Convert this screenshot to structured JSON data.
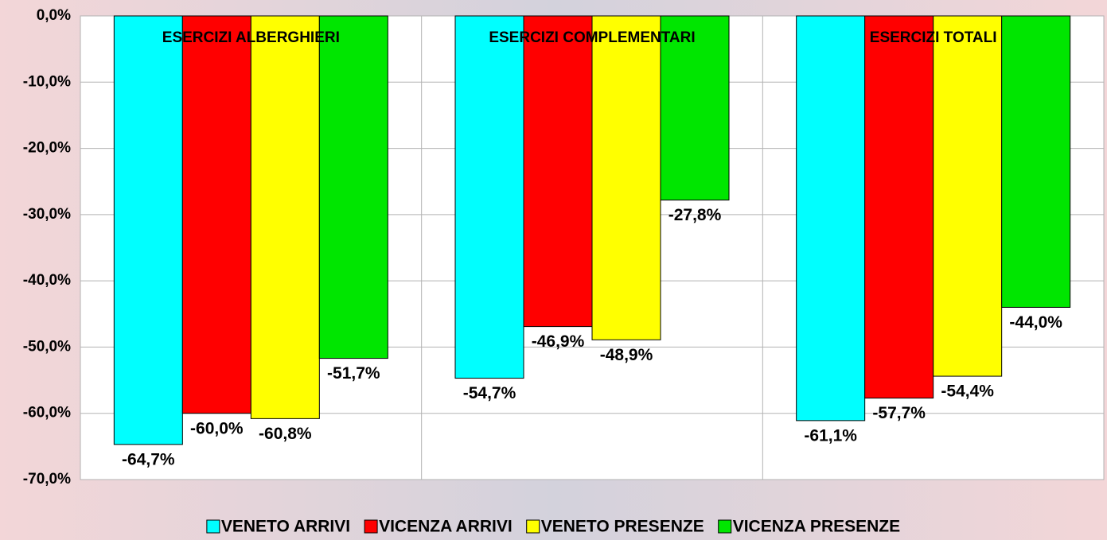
{
  "chart_data": {
    "type": "bar",
    "categories": [
      "ESERCIZI ALBERGHIERI",
      "ESERCIZI COMPLEMENTARI",
      "ESERCIZI TOTALI"
    ],
    "series": [
      {
        "name": "VENETO ARRIVI",
        "color": "#00ffff",
        "values": [
          -64.7,
          -54.7,
          -61.1
        ],
        "value_labels": [
          "-64,7%",
          "-54,7%",
          "-61,1%"
        ]
      },
      {
        "name": "VICENZA ARRIVI",
        "color": "#ff0000",
        "values": [
          -60.0,
          -46.9,
          -57.7
        ],
        "value_labels": [
          "-60,0%",
          "-46,9%",
          "-57,7%"
        ]
      },
      {
        "name": "VENETO PRESENZE",
        "color": "#ffff00",
        "values": [
          -60.8,
          -48.9,
          -54.4
        ],
        "value_labels": [
          "-60,8%",
          "-48,9%",
          "-54,4%"
        ]
      },
      {
        "name": "VICENZA PRESENZE",
        "color": "#00e600",
        "values": [
          -51.7,
          -27.8,
          -44.0
        ],
        "value_labels": [
          "-51,7%",
          "-27,8%",
          "-44,0%"
        ]
      }
    ],
    "ylim": [
      -70,
      0
    ],
    "yticks": [
      {
        "value": 0,
        "label": "0,0%"
      },
      {
        "value": -10,
        "label": "-10,0%"
      },
      {
        "value": -20,
        "label": "-20,0%"
      },
      {
        "value": -30,
        "label": "-30,0%"
      },
      {
        "value": -40,
        "label": "-40,0%"
      },
      {
        "value": -50,
        "label": "-50,0%"
      },
      {
        "value": -60,
        "label": "-60,0%"
      },
      {
        "value": -70,
        "label": "-70,0%"
      }
    ],
    "grid": true,
    "legend": "bottom"
  }
}
